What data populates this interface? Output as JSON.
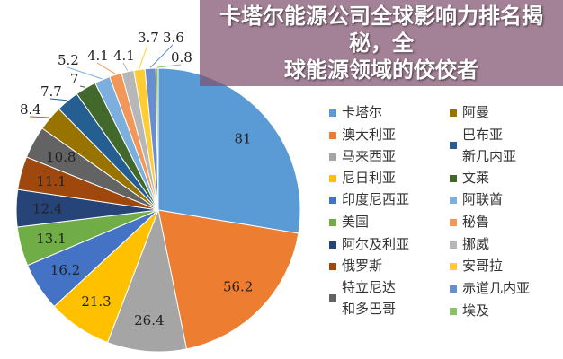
{
  "overlay_title": {
    "line1": "卡塔尔能源公司全球影响力排名揭秘，全",
    "line2": "球能源领域的佼佼者"
  },
  "chart_data": {
    "type": "pie",
    "start": "top",
    "direction": "clockwise",
    "legend_placement": "right",
    "slices": [
      {
        "label": "卡塔尔",
        "value": 81,
        "color": "#5b9bd5"
      },
      {
        "label": "澳大利亚",
        "value": 56.2,
        "color": "#ed7d31"
      },
      {
        "label": "马来西亚",
        "value": 26.4,
        "color": "#a5a5a5"
      },
      {
        "label": "尼日利亚",
        "value": 21.3,
        "color": "#ffc000"
      },
      {
        "label": "印度尼西亚",
        "value": 16.2,
        "color": "#4472c4"
      },
      {
        "label": "美国",
        "value": 13.1,
        "color": "#70ad47"
      },
      {
        "label": "阿尔及利亚",
        "value": 12.4,
        "color": "#264478"
      },
      {
        "label": "俄罗斯",
        "value": 11.1,
        "color": "#9e480e"
      },
      {
        "label": "特立尼达和多巴哥",
        "value": 10.8,
        "color": "#636363"
      },
      {
        "label": "阿曼",
        "value": 8.4,
        "color": "#997300"
      },
      {
        "label": "巴布亚新几内亚",
        "value": 7.7,
        "color": "#255e91"
      },
      {
        "label": "文莱",
        "value": 7,
        "color": "#43682b"
      },
      {
        "label": "阿联酋",
        "value": 5.2,
        "color": "#7cafdd"
      },
      {
        "label": "秘鲁",
        "value": 4.1,
        "color": "#f1975a"
      },
      {
        "label": "挪威",
        "value": 4.1,
        "color": "#b7b7b7"
      },
      {
        "label": "安哥拉",
        "value": 3.7,
        "color": "#ffcd33"
      },
      {
        "label": "赤道几内亚",
        "value": 3.6,
        "color": "#698ed0"
      },
      {
        "label": "埃及",
        "value": 0.8,
        "color": "#8cc168"
      }
    ],
    "legend": {
      "left": [
        "卡塔尔",
        "澳大利亚",
        "马来西亚",
        "尼日利亚",
        "印度尼西亚",
        "美国",
        "阿尔及利亚",
        "俄罗斯",
        [
          "特立尼达",
          "和多巴哥"
        ]
      ],
      "right": [
        "阿曼",
        [
          "巴布亚",
          "新几内亚"
        ],
        "文莱",
        "阿联酋",
        "秘鲁",
        "挪威",
        "安哥拉",
        "赤道几内亚",
        "埃及"
      ]
    }
  }
}
